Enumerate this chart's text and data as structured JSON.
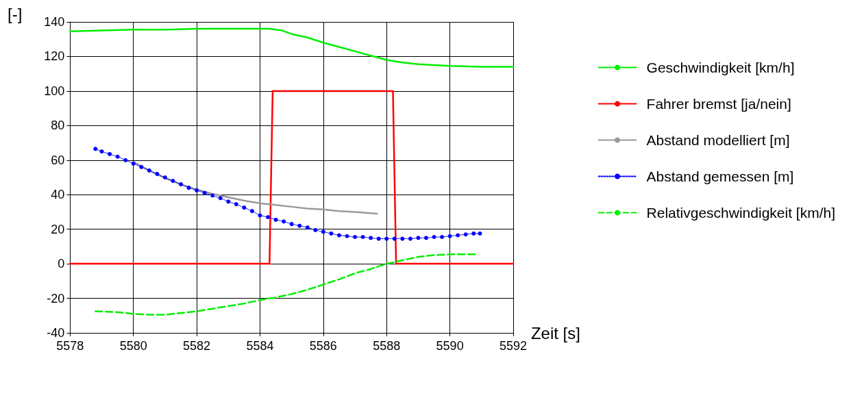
{
  "chart_data": {
    "type": "line",
    "xlabel": "Zeit [s]",
    "ylabel": "[-]",
    "xlim": [
      5578,
      5592
    ],
    "xticks": [
      5578,
      5580,
      5582,
      5584,
      5586,
      5588,
      5590,
      5592
    ],
    "ylim": [
      -40,
      140
    ],
    "yticks": [
      -40,
      -20,
      0,
      20,
      40,
      60,
      80,
      100,
      120,
      140
    ],
    "grid": true,
    "legend": "right",
    "series": [
      {
        "name": "Geschwindigkeit [km/h]",
        "color": "#00ee00",
        "line_style": "solid",
        "marker": "none",
        "x": [
          5578,
          5579,
          5580,
          5581,
          5582,
          5583,
          5584,
          5584.3,
          5584.7,
          5585,
          5585.5,
          5586,
          5586.5,
          5587,
          5587.5,
          5588,
          5588.5,
          5589,
          5589.5,
          5590,
          5591,
          5592
        ],
        "values": [
          134.5,
          135,
          135.5,
          135.5,
          136,
          136,
          136,
          136,
          135,
          133,
          131,
          128,
          125.5,
          123,
          120.5,
          118,
          116.5,
          115.5,
          115,
          114.5,
          114,
          114
        ]
      },
      {
        "name": "Fahrer bremst [ja/nein]",
        "color": "#ff0000",
        "line_style": "solid",
        "marker": "none",
        "x": [
          5578,
          5584.3,
          5584.4,
          5588.2,
          5588.3,
          5592
        ],
        "values": [
          0,
          0,
          100,
          100,
          0,
          0
        ]
      },
      {
        "name": "Abstand modelliert [m]",
        "color": "#999999",
        "line_style": "solid",
        "marker": "none",
        "x": [
          5580,
          5580.5,
          5581,
          5581.5,
          5582,
          5582.5,
          5583,
          5583.5,
          5584,
          5584.5,
          5585,
          5585.5,
          5586,
          5586.5,
          5587,
          5587.7
        ],
        "values": [
          59,
          54,
          49.5,
          46,
          43,
          40.5,
          38.5,
          36.5,
          35,
          34,
          33,
          32,
          31.5,
          30.5,
          30,
          29
        ]
      },
      {
        "name": "Abstand gemessen [m]",
        "color": "#0000ff",
        "line_style": "dotted",
        "marker": "circle",
        "x": [
          5578.8,
          5579,
          5579.25,
          5579.5,
          5579.75,
          5580,
          5580.25,
          5580.5,
          5580.75,
          5581,
          5581.25,
          5581.5,
          5581.75,
          5582,
          5582.25,
          5582.5,
          5582.75,
          5583,
          5583.25,
          5583.5,
          5583.75,
          5584,
          5584.25,
          5584.5,
          5584.75,
          5585,
          5585.25,
          5585.5,
          5585.75,
          5586,
          5586.25,
          5586.5,
          5586.75,
          5587,
          5587.25,
          5587.5,
          5587.75,
          5588,
          5588.25,
          5588.5,
          5588.75,
          5589,
          5589.25,
          5589.5,
          5589.75,
          5590,
          5590.25,
          5590.5,
          5590.75,
          5590.95
        ],
        "values": [
          66.5,
          65,
          63.5,
          62,
          60,
          58,
          56,
          54,
          52,
          50,
          48,
          46,
          44,
          42.5,
          41,
          39.5,
          38,
          36,
          34.5,
          32.5,
          30.5,
          28,
          27,
          25.5,
          24.5,
          23,
          22,
          21,
          19.5,
          18.5,
          17.5,
          16.5,
          16,
          15.5,
          15.5,
          15,
          14.5,
          14.5,
          14.5,
          14.5,
          14.5,
          15,
          15,
          15.5,
          15.5,
          16,
          16.5,
          17,
          17.5,
          17.5
        ]
      },
      {
        "name": "Relativgeschwindigkeit [km/h]",
        "color": "#00ee00",
        "line_style": "dashed",
        "marker": "none",
        "x": [
          5578.8,
          5579.5,
          5580,
          5580.5,
          5581,
          5581.5,
          5582,
          5582.5,
          5583,
          5583.5,
          5584,
          5584.5,
          5585,
          5585.5,
          5586,
          5586.5,
          5587,
          5587.5,
          5588,
          5588.5,
          5589,
          5589.5,
          5590,
          5590.5,
          5590.9
        ],
        "values": [
          -27.5,
          -28,
          -29,
          -29.5,
          -29.5,
          -28.5,
          -27.5,
          -26,
          -24.5,
          -23,
          -21,
          -19.5,
          -17.5,
          -15,
          -12,
          -9,
          -5.5,
          -3,
          0,
          2,
          4,
          5,
          5.5,
          5.5,
          5.5
        ]
      }
    ]
  }
}
